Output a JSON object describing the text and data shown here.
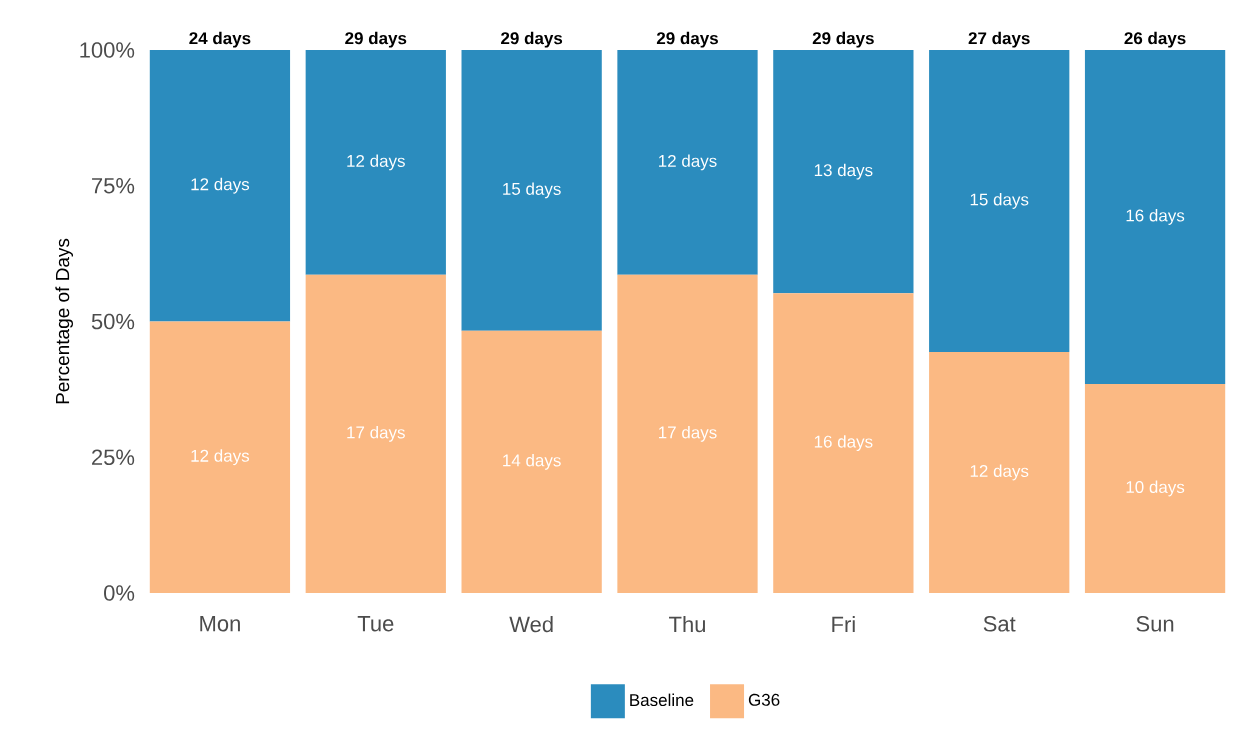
{
  "chart_data": {
    "type": "bar",
    "stacked": true,
    "ylabel": "Percentage of Days",
    "categories": [
      "Mon",
      "Tue",
      "Wed",
      "Thu",
      "Fri",
      "Sat",
      "Sun"
    ],
    "series": [
      {
        "name": "G36",
        "color": "#fbb983",
        "values": [
          50,
          58.6,
          48.3,
          58.6,
          55.2,
          44.4,
          38.5
        ]
      },
      {
        "name": "Baseline",
        "color": "#2b8cbe",
        "values": [
          50,
          41.4,
          51.7,
          41.4,
          44.8,
          55.6,
          61.5
        ]
      }
    ],
    "annotations": [
      "12 days",
      "17 days",
      "14 days",
      "17 days",
      "16 days",
      "12 days",
      "10 days",
      "12 days",
      "12 days",
      "15 days",
      "12 days",
      "13 days",
      "15 days",
      "16 days",
      {
        "text": "24 days",
        "x": "Mon",
        "y": 100
      },
      {
        "text": "29 days",
        "x": "Tue",
        "y": 100
      },
      {
        "text": "29 days",
        "x": "Wed",
        "y": 100
      },
      {
        "text": "29 days",
        "x": "Thu",
        "y": 100
      },
      {
        "text": "29 days",
        "x": "Fri",
        "y": 100
      },
      {
        "text": "27 days",
        "x": "Sat",
        "y": 100
      },
      {
        "text": "26 days",
        "x": "Sun",
        "y": 100
      }
    ],
    "ylim": [
      0,
      100
    ],
    "yticks": [
      {
        "value": 0,
        "label": "0%"
      },
      {
        "value": 25,
        "label": "25%"
      },
      {
        "value": 50,
        "label": "50%"
      },
      {
        "value": 75,
        "label": "75%"
      },
      {
        "value": 100,
        "label": "100%"
      }
    ],
    "legend": "bottom"
  }
}
